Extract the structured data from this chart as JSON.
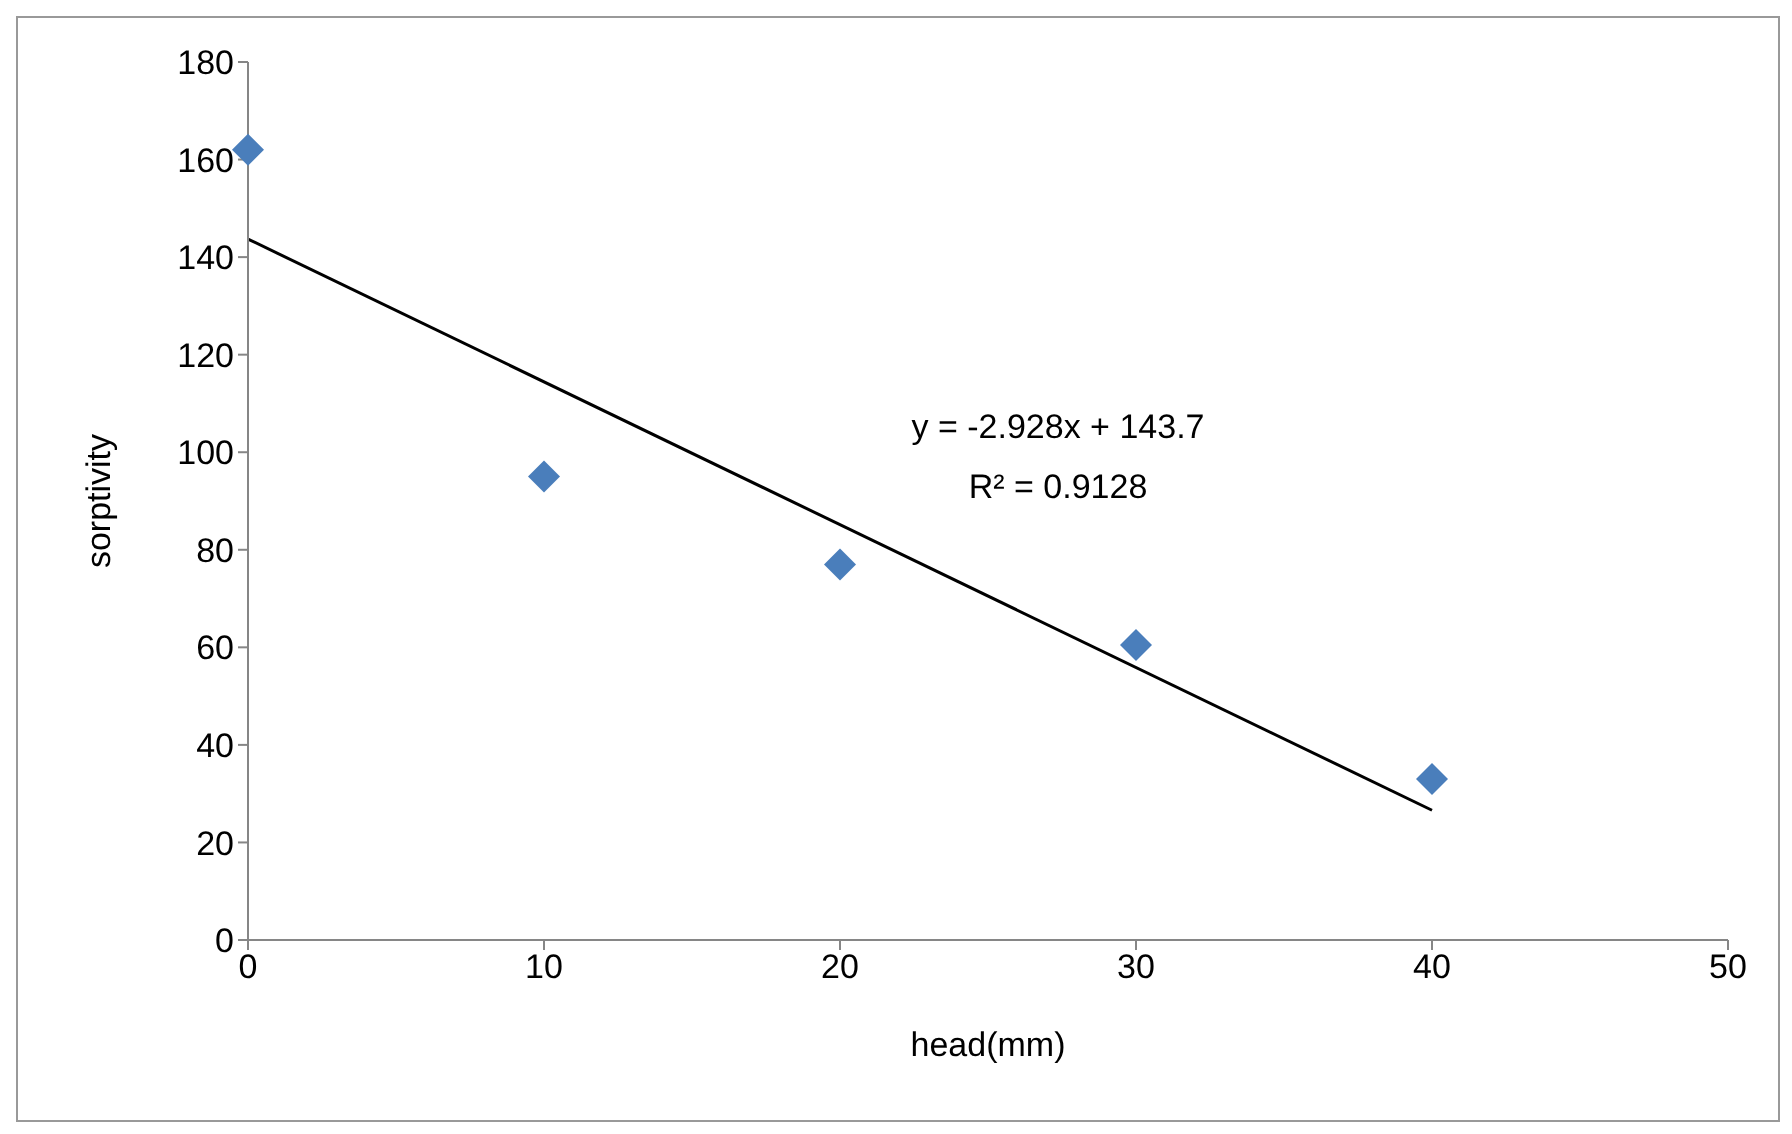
{
  "chart_data": {
    "type": "scatter",
    "xlabel": "head(mm)",
    "ylabel": "sorptivity",
    "xlim": [
      0,
      50
    ],
    "xticks": [
      0,
      10,
      20,
      30,
      40,
      50
    ],
    "ylim": [
      0,
      180
    ],
    "yticks": [
      0,
      20,
      40,
      60,
      80,
      100,
      120,
      140,
      160,
      180
    ],
    "grid": false,
    "annotations": [
      "y = -2.928x + 143.7",
      "R² = 0.9128"
    ],
    "series": [
      {
        "color": "#4a7ebb",
        "marker": "diamond",
        "x": [
          0,
          10,
          20,
          30,
          40
        ],
        "values": [
          162,
          95,
          77,
          60.5,
          33
        ]
      },
      {
        "type": "line",
        "color": "#000000",
        "x": [
          0,
          40
        ],
        "values": [
          143.7,
          26.6
        ]
      }
    ]
  }
}
